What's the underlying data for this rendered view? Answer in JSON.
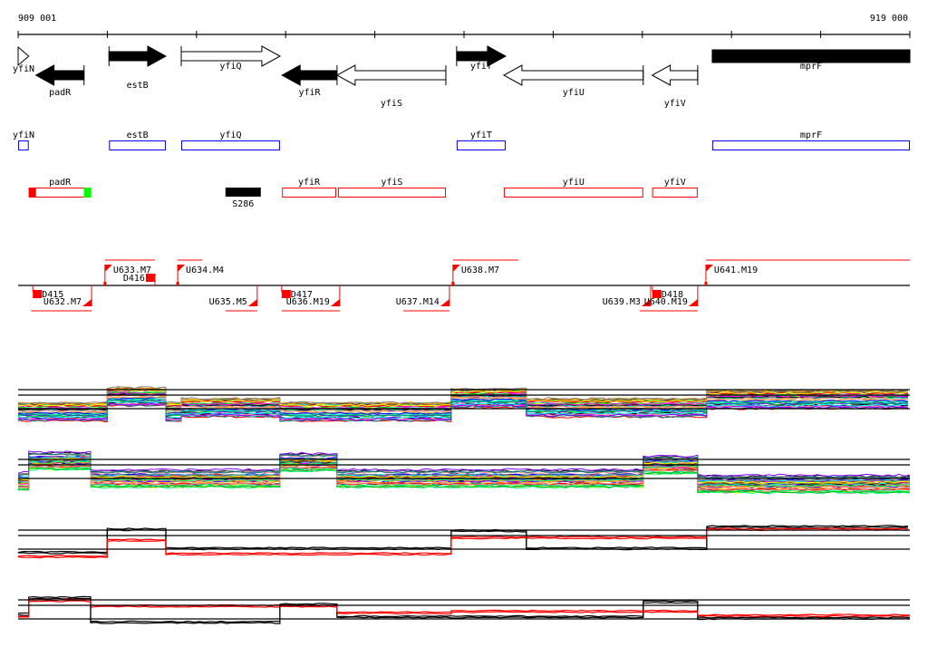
{
  "ruler": {
    "start_label": "909 001",
    "end_label": "919 000",
    "start": 909001,
    "end": 919000
  },
  "genes": [
    {
      "name": "yfiN",
      "start": 909001,
      "end": 909120,
      "strand": "+",
      "filled": false
    },
    {
      "name": "padR",
      "start": 909200,
      "end": 909740,
      "strand": "-",
      "filled": true
    },
    {
      "name": "estB",
      "start": 910020,
      "end": 910657,
      "strand": "+",
      "filled": true
    },
    {
      "name": "yfiQ",
      "start": 910830,
      "end": 911937,
      "strand": "+",
      "filled": false
    },
    {
      "name": "yfiR",
      "start": 911960,
      "end": 912577,
      "strand": "-",
      "filled": true
    },
    {
      "name": "yfiS",
      "start": 912577,
      "end": 913797,
      "strand": "-",
      "filled": false
    },
    {
      "name": "yfiT",
      "start": 913918,
      "end": 914467,
      "strand": "+",
      "filled": true
    },
    {
      "name": "yfiU",
      "start": 914447,
      "end": 916010,
      "strand": "-",
      "filled": false
    },
    {
      "name": "yfiV",
      "start": 916110,
      "end": 916621,
      "strand": "-",
      "filled": false
    },
    {
      "name": "mprF",
      "start": 916784,
      "end": 919000,
      "strand": "+",
      "filled": true
    }
  ],
  "blue_track": [
    {
      "name": "yfiN",
      "start": 909001,
      "end": 909120
    },
    {
      "name": "estB",
      "start": 910020,
      "end": 910657
    },
    {
      "name": "yfiQ",
      "start": 910830,
      "end": 911937
    },
    {
      "name": "yfiT",
      "start": 913918,
      "end": 914467
    },
    {
      "name": "mprF",
      "start": 916784,
      "end": 919000
    }
  ],
  "red_track": [
    {
      "name": "padR",
      "start": 909120,
      "end": 909820,
      "start_mark": "#ff0000",
      "end_mark": "#00ff00"
    },
    {
      "name": "S286",
      "start": 911326,
      "end": 911722,
      "solid": true
    },
    {
      "name": "yfiR",
      "start": 911960,
      "end": 912567
    },
    {
      "name": "yfiS",
      "start": 912587,
      "end": 913797
    },
    {
      "name": "yfiU",
      "start": 914447,
      "end": 916010
    },
    {
      "name": "yfiV",
      "start": 916110,
      "end": 916621
    }
  ],
  "features_upper": [
    {
      "name": "U633.M7",
      "start": 909975,
      "end": 910535
    },
    {
      "name": "U634.M4",
      "start": 910790,
      "end": 911065
    },
    {
      "name": "U638.M7",
      "start": 913877,
      "end": 914610
    },
    {
      "name": "U641.M19",
      "start": 916713,
      "end": 919000
    }
  ],
  "features_lower": [
    {
      "name": "U632.M7",
      "start": 909147,
      "end": 909825
    },
    {
      "name": "U635.M5",
      "start": 911326,
      "end": 911682
    },
    {
      "name": "U636.M19",
      "start": 911956,
      "end": 912607
    },
    {
      "name": "U637.M14",
      "start": 913320,
      "end": 913837
    },
    {
      "name": "U639.M3",
      "start": 915970,
      "end": 916093
    },
    {
      "name": "U640.M19",
      "start": 916093,
      "end": 916621
    }
  ],
  "deletions": [
    {
      "name": "D415",
      "pos": 909166,
      "side": "below"
    },
    {
      "name": "D416",
      "pos": 910535,
      "side": "above"
    },
    {
      "name": "D417",
      "pos": 911956,
      "side": "below"
    },
    {
      "name": "D418",
      "pos": 916113,
      "side": "below"
    }
  ],
  "chart_data": [
    {
      "type": "line",
      "title": "",
      "series_style": "many-colored",
      "segments": [
        [
          909001,
          910000,
          -0.2
        ],
        [
          910000,
          910657,
          0.9
        ],
        [
          910657,
          910830,
          -0.2
        ],
        [
          910830,
          911937,
          0.1
        ],
        [
          911937,
          913857,
          -0.2
        ],
        [
          913857,
          914700,
          0.8
        ],
        [
          914700,
          916723,
          0.1
        ],
        [
          916723,
          919000,
          0.7
        ]
      ],
      "reference_lines": [
        0,
        1,
        1.4
      ]
    },
    {
      "type": "line",
      "title": "",
      "series_style": "many-colored",
      "segments": [
        [
          909001,
          909120,
          -0.2
        ],
        [
          909120,
          909814,
          1.3
        ],
        [
          909814,
          911937,
          0.0
        ],
        [
          911937,
          912577,
          1.2
        ],
        [
          912577,
          916010,
          0.0
        ],
        [
          916010,
          916621,
          1.0
        ],
        [
          916621,
          919000,
          -0.4
        ]
      ],
      "reference_lines": [
        0,
        1,
        1.4
      ]
    },
    {
      "type": "line",
      "title": "",
      "series_style": "black-red",
      "segments_black": [
        [
          909001,
          910000,
          -0.3
        ],
        [
          910000,
          910657,
          1.4
        ],
        [
          910657,
          913857,
          0.0
        ],
        [
          913857,
          914700,
          1.3
        ],
        [
          914700,
          916723,
          0.0
        ],
        [
          916723,
          919000,
          1.6
        ]
      ],
      "segments_red": [
        [
          909001,
          910000,
          -0.6
        ],
        [
          910000,
          910657,
          0.6
        ],
        [
          910657,
          913857,
          -0.4
        ],
        [
          913857,
          916723,
          0.8
        ],
        [
          916723,
          919000,
          1.4
        ]
      ],
      "reference_lines": [
        0,
        1,
        1.4
      ]
    },
    {
      "type": "line",
      "title": "",
      "series_style": "black-red",
      "segments_black": [
        [
          909001,
          909120,
          0.3
        ],
        [
          909120,
          909814,
          1.5
        ],
        [
          909814,
          911937,
          -0.3
        ],
        [
          911937,
          912577,
          1.0
        ],
        [
          912577,
          916010,
          0.1
        ],
        [
          916010,
          916621,
          1.2
        ],
        [
          916621,
          919000,
          0.0
        ]
      ],
      "segments_red": [
        [
          909001,
          909120,
          0.1
        ],
        [
          909120,
          909814,
          1.3
        ],
        [
          909814,
          911937,
          0.9
        ],
        [
          911937,
          912577,
          0.9
        ],
        [
          912577,
          913857,
          0.4
        ],
        [
          913857,
          916621,
          0.5
        ],
        [
          916621,
          919000,
          0.2
        ]
      ],
      "reference_lines": [
        0,
        1,
        1.4
      ]
    }
  ],
  "colors": {
    "feature": "#ff0000",
    "blue_box": "#0000ff",
    "red_box": "#ff0000"
  }
}
